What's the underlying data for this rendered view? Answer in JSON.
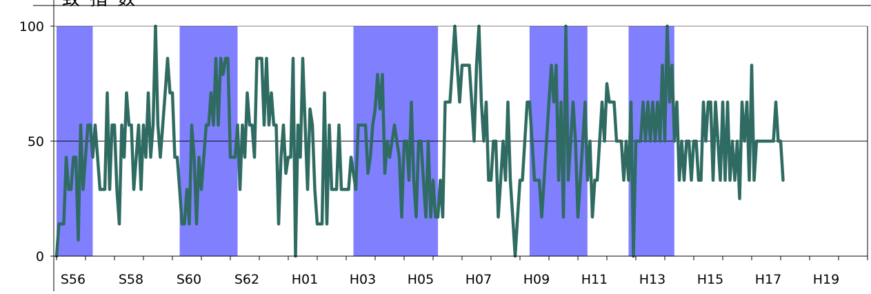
{
  "title": "一致指数",
  "chart_data": {
    "type": "line",
    "title": "一致指数",
    "xlabel": "",
    "ylabel": "",
    "ylim": [
      0,
      100
    ],
    "yticks": [
      0,
      50,
      100
    ],
    "grid": false,
    "reference_line": 50,
    "legend": "none",
    "x_tick_labels": [
      "S56",
      "S58",
      "S60",
      "S62",
      "H01",
      "H03",
      "H05",
      "H07",
      "H09",
      "H11",
      "H13",
      "H15",
      "H17",
      "H19"
    ],
    "x_tick_years": [
      1981,
      1983,
      1985,
      1987,
      1989,
      1991,
      1993,
      1995,
      1997,
      1999,
      2001,
      2003,
      2005,
      2007
    ],
    "x_range_years": [
      1981.0,
      2009.0
    ],
    "recession_periods": [
      {
        "start": 1981.0,
        "end": 1982.25
      },
      {
        "start": 1985.25,
        "end": 1987.25
      },
      {
        "start": 1991.25,
        "end": 1994.17
      },
      {
        "start": 1997.33,
        "end": 1999.33
      },
      {
        "start": 2000.75,
        "end": 2002.33
      }
    ],
    "colors": {
      "line": "#2f6b62",
      "recession": "#8080ff",
      "reference": "#000000",
      "axis": "#000000"
    },
    "series": [
      {
        "start_year": 1981.0,
        "points_per_year": 12,
        "values": [
          0,
          14,
          14,
          14,
          43,
          29,
          29,
          43,
          43,
          7,
          57,
          29,
          43,
          57,
          57,
          43,
          57,
          43,
          29,
          29,
          29,
          71,
          29,
          57,
          57,
          29,
          14,
          57,
          43,
          71,
          57,
          57,
          29,
          43,
          57,
          29,
          57,
          43,
          71,
          43,
          57,
          100,
          57,
          43,
          57,
          71,
          86,
          71,
          71,
          43,
          43,
          29,
          14,
          14,
          29,
          14,
          57,
          43,
          14,
          43,
          29,
          43,
          57,
          57,
          71,
          57,
          86,
          57,
          86,
          79,
          86,
          86,
          43,
          43,
          43,
          57,
          29,
          57,
          43,
          71,
          57,
          57,
          43,
          86,
          86,
          86,
          57,
          86,
          57,
          71,
          57,
          57,
          14,
          43,
          57,
          36,
          43,
          43,
          86,
          0,
          57,
          43,
          86,
          57,
          29,
          64,
          57,
          29,
          14,
          14,
          14,
          71,
          14,
          57,
          29,
          29,
          29,
          57,
          29,
          29,
          29,
          29,
          43,
          36,
          29,
          57,
          57,
          57,
          57,
          36,
          43,
          57,
          64,
          79,
          64,
          79,
          36,
          50,
          43,
          50,
          57,
          50,
          43,
          17,
          50,
          50,
          33,
          67,
          33,
          17,
          50,
          50,
          33,
          17,
          50,
          17,
          33,
          17,
          17,
          33,
          17,
          67,
          67,
          67,
          83,
          100,
          83,
          67,
          83,
          83,
          83,
          83,
          67,
          50,
          83,
          100,
          67,
          50,
          67,
          33,
          33,
          50,
          50,
          17,
          33,
          50,
          33,
          67,
          33,
          17,
          0,
          17,
          33,
          33,
          50,
          67,
          67,
          50,
          33,
          33,
          33,
          17,
          33,
          50,
          67,
          83,
          67,
          83,
          33,
          67,
          17,
          100,
          33,
          50,
          67,
          50,
          17,
          33,
          50,
          67,
          33,
          50,
          17,
          33,
          33,
          50,
          67,
          50,
          75,
          67,
          67,
          67,
          50,
          50,
          50,
          33,
          50,
          33,
          67,
          0,
          50,
          50,
          50,
          67,
          50,
          67,
          50,
          67,
          50,
          67,
          50,
          83,
          50,
          100,
          67,
          83,
          50,
          67,
          33,
          50,
          33,
          50,
          50,
          33,
          50,
          50,
          33,
          33,
          67,
          50,
          67,
          67,
          33,
          67,
          50,
          33,
          67,
          33,
          67,
          33,
          50,
          33,
          50,
          25,
          67,
          50,
          67,
          33,
          83,
          33,
          50,
          50,
          50,
          50,
          50,
          50,
          50,
          50,
          67,
          50,
          50,
          33
        ]
      }
    ]
  }
}
